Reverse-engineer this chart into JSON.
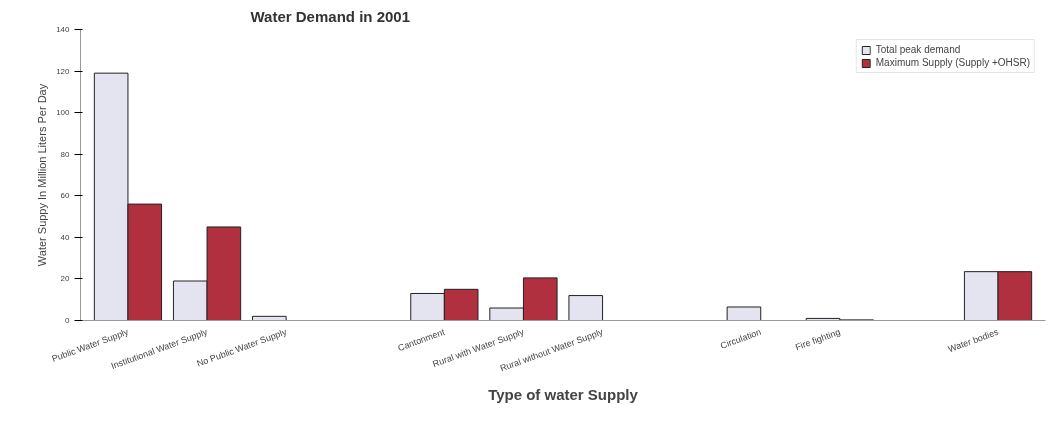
{
  "chart_data": {
    "type": "bar",
    "title": "Water Demand in 2001",
    "xlabel": "Type of water Supply",
    "ylabel": "Water Suppy In Million Liters Per Day",
    "categories": [
      "Public Water Supply",
      "Institutional Water Supply",
      "No Public Water Supply",
      null,
      "Cantonment",
      "Rural with Water Supply",
      "Rural without Water Supply",
      null,
      "Circulation",
      "Fire fighting",
      null,
      "Water bodies"
    ],
    "series": [
      {
        "name": "Total peak demand",
        "color": "#e4e4f0",
        "values": [
          119,
          19,
          2,
          null,
          13,
          6,
          12,
          null,
          6.5,
          1,
          null,
          23.5
        ]
      },
      {
        "name": "Maximum Supply (Supply +OHSR)",
        "color": "#b0303f",
        "values": [
          56,
          45,
          null,
          null,
          15,
          20.5,
          null,
          null,
          null,
          0.3,
          null,
          23.5
        ]
      }
    ],
    "ylim": [
      0,
      140
    ],
    "yticks": [
      0,
      20,
      40,
      60,
      80,
      100,
      120,
      140
    ],
    "grid": false,
    "legend": "top right"
  }
}
